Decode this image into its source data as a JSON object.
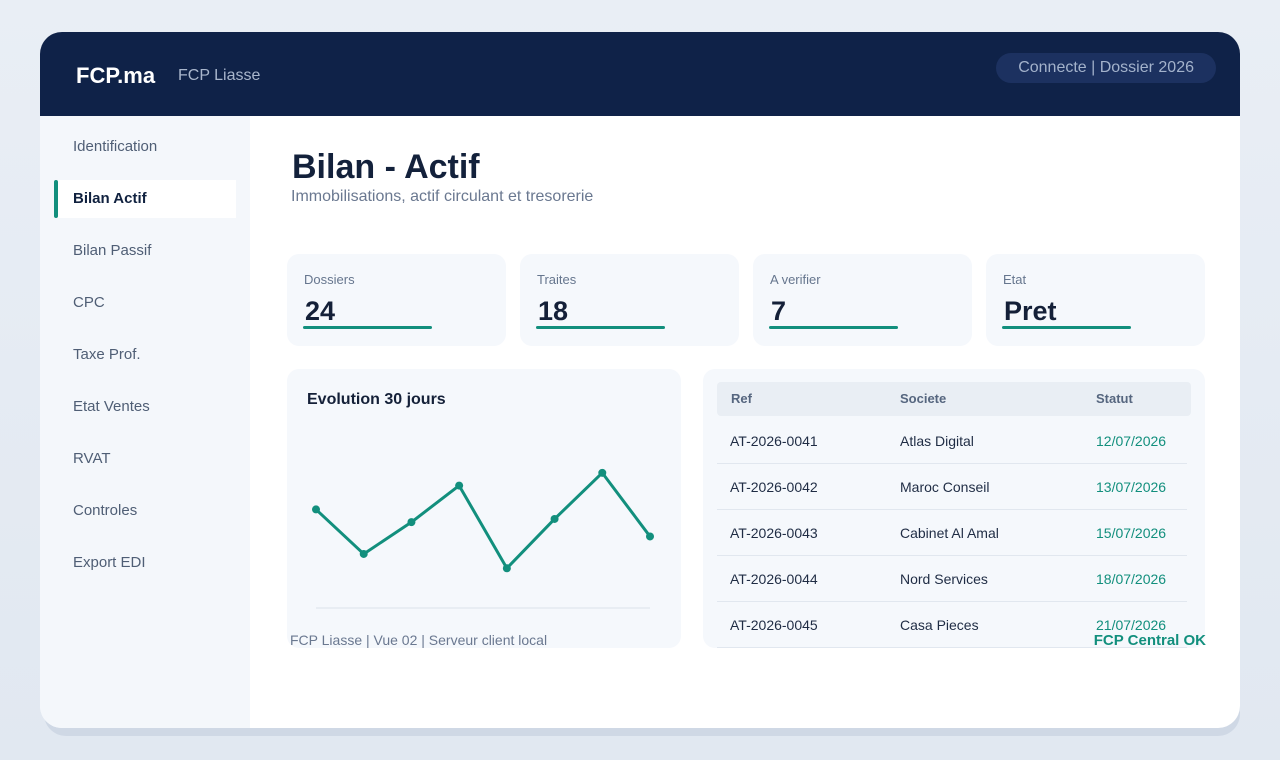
{
  "header": {
    "brand": "FCP.ma",
    "product": "FCP Liasse",
    "connection_status": "Connecte | Dossier 2026"
  },
  "sidebar": {
    "items": [
      {
        "label": "Identification",
        "active": false
      },
      {
        "label": "Bilan Actif",
        "active": true
      },
      {
        "label": "Bilan Passif",
        "active": false
      },
      {
        "label": "CPC",
        "active": false
      },
      {
        "label": "Taxe Prof.",
        "active": false
      },
      {
        "label": "Etat Ventes",
        "active": false
      },
      {
        "label": "RVAT",
        "active": false
      },
      {
        "label": "Controles",
        "active": false
      },
      {
        "label": "Export EDI",
        "active": false
      }
    ]
  },
  "page": {
    "title": "Bilan - Actif",
    "subtitle": "Immobilisations, actif circulant et tresorerie"
  },
  "stats": [
    {
      "label": "Dossiers",
      "value": "24"
    },
    {
      "label": "Traites",
      "value": "18"
    },
    {
      "label": "A verifier",
      "value": "7"
    },
    {
      "label": "Etat",
      "value": "Pret"
    }
  ],
  "chart": {
    "title": "Evolution 30 jours",
    "color": "#128f7d"
  },
  "chart_data": {
    "type": "line",
    "title": "Evolution 30 jours",
    "xlabel": "",
    "ylabel": "",
    "grid": false,
    "legend": "none",
    "series": [
      {
        "values": [
          62,
          34,
          54,
          77,
          25,
          56,
          85,
          45
        ]
      }
    ],
    "ylim": [
      0,
      100
    ]
  },
  "table": {
    "headers": [
      "Ref",
      "Societe",
      "Statut"
    ],
    "rows": [
      [
        "AT-2026-0041",
        "Atlas Digital",
        "12/07/2026"
      ],
      [
        "AT-2026-0042",
        "Maroc Conseil",
        "13/07/2026"
      ],
      [
        "AT-2026-0043",
        "Cabinet Al Amal",
        "15/07/2026"
      ],
      [
        "AT-2026-0044",
        "Nord Services",
        "18/07/2026"
      ],
      [
        "AT-2026-0045",
        "Casa Pieces",
        "21/07/2026"
      ]
    ]
  },
  "footer": {
    "info": "FCP Liasse | Vue 02 | Serveur client local",
    "status": "FCP Central OK"
  },
  "colors": {
    "header_bg": "#0f2248",
    "accent": "#128f7d",
    "text_dark": "#13213b"
  }
}
